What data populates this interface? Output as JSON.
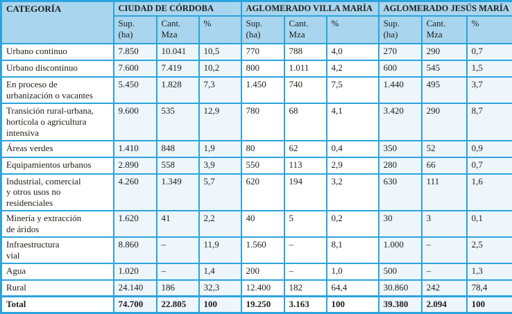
{
  "colors": {
    "border": "#2aa4dc",
    "header_bg": "#a9d5ee",
    "shaded_column_bg": "#eef6fb",
    "text": "#1d1d1b"
  },
  "chart_data": {
    "type": "table",
    "title": "",
    "category_column_header": "CATEGORÍA",
    "column_groups": [
      {
        "label": "CIUDAD DE CÓRDOBA"
      },
      {
        "label": "AGLOMERADO VILLA MARÍA"
      },
      {
        "label": "AGLOMERADO JESÚS MARÍA"
      }
    ],
    "sub_columns": [
      "Sup.\n(ha)",
      "Cant.\nMza",
      "%"
    ],
    "rows": [
      {
        "category": "Urbano continuo",
        "values": [
          "7.850",
          "10.041",
          "10,5",
          "770",
          "788",
          "4,0",
          "270",
          "290",
          "0,7"
        ]
      },
      {
        "category": "Urbano discontinuo",
        "values": [
          "7.600",
          "7.419",
          "10,2",
          "800",
          "1.011",
          "4,2",
          "600",
          "545",
          "1,5"
        ]
      },
      {
        "category": "En proceso de\nurbanización o vacantes",
        "values": [
          "5.450",
          "1.828",
          "7,3",
          "1.450",
          "740",
          "7,5",
          "1.440",
          "495",
          "3,7"
        ]
      },
      {
        "category": "Transición rural-urbana,\nhortícola o agricultura\nintensiva",
        "values": [
          "9.600",
          "535",
          "12,9",
          "780",
          "68",
          "4,1",
          "3.420",
          "290",
          "8,7"
        ]
      },
      {
        "category": "Áreas verdes",
        "values": [
          "1.410",
          "848",
          "1,9",
          "80",
          "62",
          "0,4",
          "350",
          "52",
          "0,9"
        ]
      },
      {
        "category": "Equipamientos urbanos",
        "values": [
          "2.890",
          "558",
          "3,9",
          "550",
          "113",
          "2,9",
          "280",
          "66",
          "0,7"
        ]
      },
      {
        "category": "Industrial, comercial\ny otros usos no\nresidenciales",
        "values": [
          "4.260",
          "1.349",
          "5,7",
          "620",
          "194",
          "3,2",
          "630",
          "111",
          "1,6"
        ]
      },
      {
        "category": "Minería y extracción\nde áridos",
        "values": [
          "1.620",
          "41",
          "2,2",
          "40",
          "5",
          "0,2",
          "30",
          "3",
          "0,1"
        ]
      },
      {
        "category": "Infraestructura\nvial",
        "values": [
          "8.860",
          "–",
          "11,9",
          "1.560",
          "–",
          "8,1",
          "1.000",
          "–",
          "2,5"
        ]
      },
      {
        "category": "Agua",
        "values": [
          "1.020",
          "–",
          "1,4",
          "200",
          "–",
          "1,0",
          "500",
          "–",
          "1,3"
        ]
      },
      {
        "category": "Rural",
        "values": [
          "24.140",
          "186",
          "32,3",
          "12.400",
          "182",
          "64,4",
          "30.860",
          "242",
          "78,4"
        ]
      },
      {
        "category": "Total",
        "is_total": true,
        "values": [
          "74.700",
          "22.805",
          "100",
          "19.250",
          "3.163",
          "100",
          "39.380",
          "2.094",
          "100"
        ]
      }
    ]
  }
}
